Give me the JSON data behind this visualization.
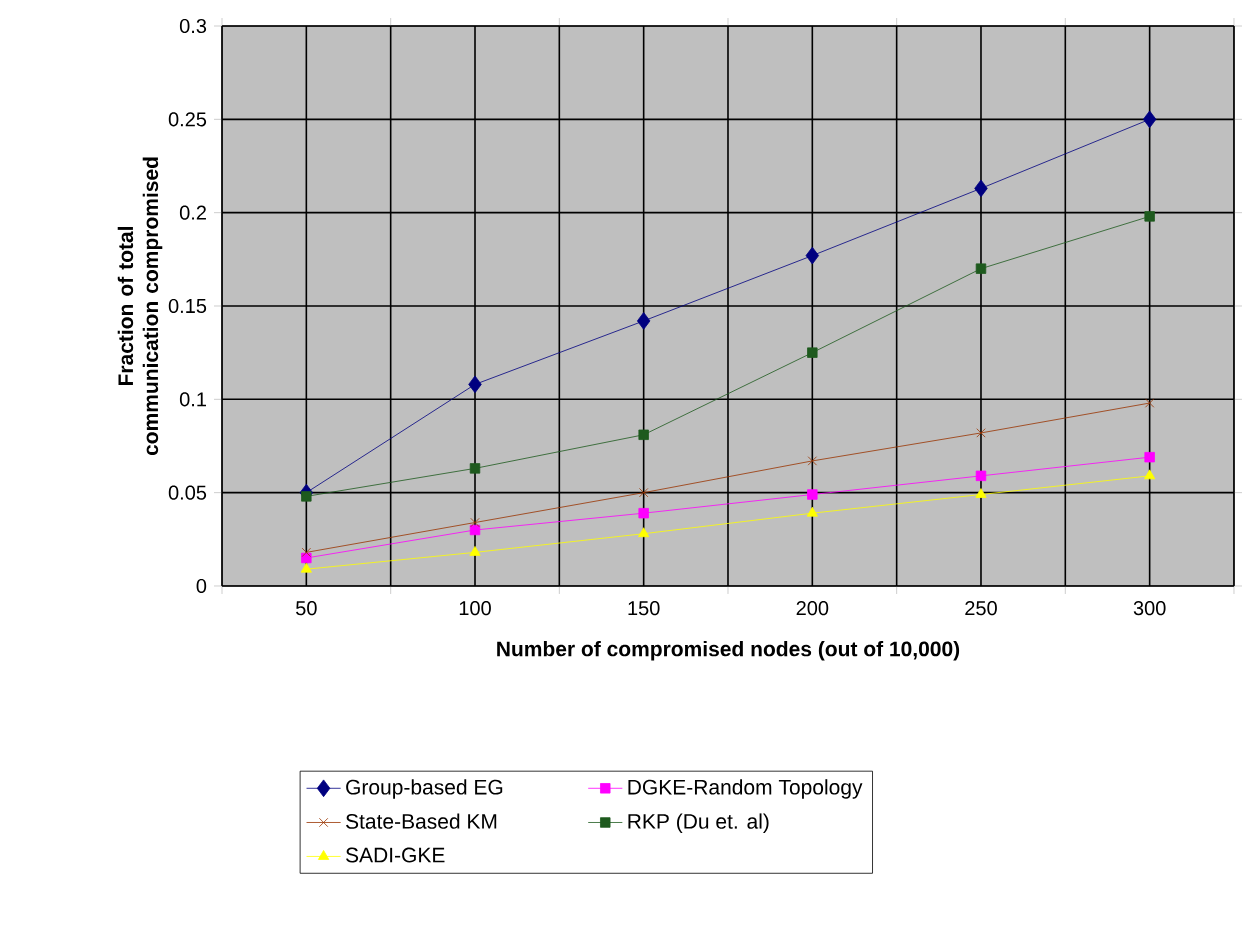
{
  "chart_data": {
    "type": "line",
    "xlabel": "Number of compromised nodes (out of 10,000)",
    "ylabel": "Fraction of total communication compromised",
    "categories": [
      "50",
      "100",
      "150",
      "200",
      "250",
      "300"
    ],
    "ylim": [
      0,
      0.3
    ],
    "yticks": [
      0,
      0.05,
      0.1,
      0.15,
      0.2,
      0.25,
      0.3
    ],
    "grid": true,
    "legend": "bottom",
    "series": [
      {
        "name": "Group-based EG",
        "color": "#000080",
        "marker": "diamond",
        "values": [
          0.05,
          0.108,
          0.142,
          0.177,
          0.213,
          0.25
        ]
      },
      {
        "name": "DGKE-Random Topology",
        "color": "#ff00ff",
        "marker": "square",
        "values": [
          0.015,
          0.03,
          0.039,
          0.049,
          0.059,
          0.069
        ]
      },
      {
        "name": "State-Based KM",
        "color": "#993300",
        "marker": "cross",
        "values": [
          0.018,
          0.034,
          0.05,
          0.067,
          0.082,
          0.098
        ]
      },
      {
        "name": "RKP (Du et. al)",
        "color": "#1e5a1e",
        "marker": "square",
        "values": [
          0.048,
          0.063,
          0.081,
          0.125,
          0.17,
          0.198
        ]
      },
      {
        "name": "SADI-GKE",
        "color": "#ffff00",
        "marker": "triangle",
        "values": [
          0.009,
          0.018,
          0.028,
          0.039,
          0.049,
          0.059
        ]
      }
    ]
  }
}
